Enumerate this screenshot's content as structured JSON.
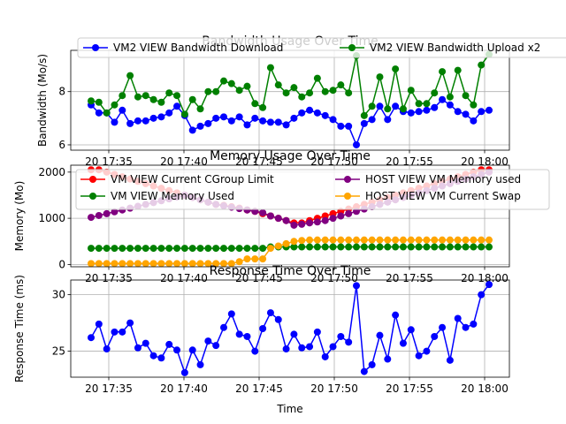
{
  "chart_data": [
    {
      "type": "line",
      "title": "Bandwidth Usage Over Time",
      "xlabel": "",
      "ylabel": "Bandwidth (Mo/s)",
      "yticks": [
        6,
        8
      ],
      "xticks": [
        "20 17:35",
        "20 17:40",
        "20 17:45",
        "20 17:50",
        "20 17:55",
        "20 18:00"
      ],
      "grid": true,
      "legend_position": "top",
      "series": [
        {
          "name": "VM2 VIEW Bandwidth Download",
          "color": "#0000ff",
          "values": [
            7.5,
            7.2,
            7.2,
            6.85,
            7.3,
            6.8,
            6.9,
            6.9,
            7.0,
            7.05,
            7.2,
            7.45,
            7.1,
            6.55,
            6.7,
            6.8,
            7.0,
            7.05,
            6.9,
            7.05,
            6.75,
            7.0,
            6.9,
            6.85,
            6.85,
            6.75,
            7.0,
            7.2,
            7.3,
            7.2,
            7.1,
            6.95,
            6.7,
            6.7,
            6.0,
            6.8,
            6.95,
            7.45,
            6.95,
            7.45,
            7.25,
            7.2,
            7.25,
            7.3,
            7.4,
            7.7,
            7.5,
            7.25,
            7.15,
            6.9,
            7.25,
            7.3
          ]
        },
        {
          "name": "VM2 VIEW Bandwidth Upload x2",
          "color": "#008000",
          "values": [
            7.65,
            7.6,
            7.2,
            7.5,
            7.85,
            8.6,
            7.8,
            7.85,
            7.7,
            7.6,
            7.95,
            7.85,
            7.15,
            7.7,
            7.35,
            8.0,
            8.0,
            8.4,
            8.3,
            8.05,
            8.2,
            7.55,
            7.4,
            8.9,
            8.25,
            7.95,
            8.15,
            7.8,
            7.95,
            8.5,
            8.0,
            8.05,
            8.25,
            7.95,
            9.35,
            7.1,
            7.45,
            8.55,
            7.35,
            8.85,
            7.35,
            8.05,
            7.55,
            7.55,
            7.95,
            8.75,
            7.8,
            8.8,
            7.85,
            7.5,
            9.0,
            9.4
          ]
        }
      ]
    },
    {
      "type": "line",
      "title": "Memory Usage Over Time",
      "xlabel": "",
      "ylabel": "Memory (Mo)",
      "yticks": [
        0,
        1000,
        2000
      ],
      "xticks": [
        "20 17:35",
        "20 17:40",
        "20 17:45",
        "20 17:50",
        "20 17:55",
        "20 18:00"
      ],
      "grid": true,
      "legend_position": "top",
      "series": [
        {
          "name": "VM VIEW Current CGroup Limit",
          "color": "#ff0000",
          "values": [
            2050,
            2050,
            2000,
            1950,
            1900,
            1850,
            1800,
            1750,
            1700,
            1650,
            1600,
            1550,
            1500,
            1450,
            1400,
            1350,
            1300,
            1280,
            1250,
            1220,
            1180,
            1150,
            1100,
            1050,
            1000,
            950,
            900,
            900,
            950,
            1000,
            1050,
            1100,
            1150,
            1200,
            1250,
            1300,
            1350,
            1400,
            1450,
            1500,
            1550,
            1600,
            1650,
            1700,
            1750,
            1800,
            1850,
            1900,
            1950,
            2000,
            2050,
            2050
          ]
        },
        {
          "name": "VM VIEW Memory Used",
          "color": "#008000",
          "values": [
            350,
            350,
            350,
            350,
            350,
            350,
            350,
            350,
            350,
            350,
            350,
            350,
            350,
            350,
            350,
            350,
            350,
            350,
            350,
            350,
            350,
            350,
            350,
            380,
            380,
            380,
            380,
            380,
            380,
            380,
            380,
            380,
            380,
            380,
            380,
            380,
            380,
            380,
            380,
            380,
            380,
            380,
            380,
            380,
            380,
            380,
            380,
            380,
            380,
            380,
            380,
            380
          ]
        },
        {
          "name": "HOST VIEW VM Memory used",
          "color": "#800080",
          "values": [
            1020,
            1060,
            1100,
            1140,
            1180,
            1220,
            1260,
            1300,
            1340,
            1380,
            1420,
            1460,
            1500,
            1450,
            1400,
            1350,
            1300,
            1270,
            1240,
            1210,
            1180,
            1150,
            1120,
            1050,
            1000,
            950,
            850,
            870,
            900,
            920,
            950,
            1000,
            1050,
            1100,
            1150,
            1200,
            1250,
            1300,
            1350,
            1400,
            1450,
            1500,
            1550,
            1600,
            1650,
            1700,
            1750,
            1800,
            1850,
            1900,
            1950,
            2000
          ]
        },
        {
          "name": "HOST VIEW VM Current Swap",
          "color": "#ffa500",
          "values": [
            20,
            20,
            20,
            20,
            20,
            20,
            20,
            20,
            20,
            20,
            20,
            20,
            20,
            20,
            20,
            20,
            20,
            20,
            20,
            60,
            120,
            120,
            120,
            350,
            400,
            450,
            500,
            520,
            530,
            530,
            530,
            530,
            530,
            530,
            530,
            530,
            530,
            530,
            530,
            530,
            530,
            530,
            530,
            530,
            530,
            530,
            530,
            530,
            530,
            530,
            530,
            530
          ]
        }
      ]
    },
    {
      "type": "line",
      "title": "Response Time Over Time",
      "xlabel": "Time",
      "ylabel": "Response Time (ms)",
      "yticks": [
        25,
        30
      ],
      "xticks": [
        "20 17:35",
        "20 17:40",
        "20 17:45",
        "20 17:50",
        "20 17:55",
        "20 18:00"
      ],
      "grid": true,
      "series": [
        {
          "name": "",
          "color": "#0000ff",
          "values": [
            26.2,
            27.4,
            25.2,
            26.7,
            26.7,
            27.5,
            25.3,
            25.7,
            24.6,
            24.4,
            25.6,
            25.1,
            23.1,
            25.1,
            23.8,
            25.9,
            25.5,
            27.1,
            28.3,
            26.5,
            26.3,
            25.0,
            27.0,
            28.4,
            27.8,
            25.2,
            26.5,
            25.3,
            25.4,
            26.7,
            24.5,
            25.4,
            26.3,
            25.8,
            30.8,
            23.2,
            23.8,
            26.4,
            24.3,
            28.2,
            25.7,
            26.9,
            24.6,
            25.0,
            26.3,
            27.1,
            24.2,
            27.9,
            27.1,
            27.4,
            30.0,
            30.9
          ]
        }
      ]
    }
  ]
}
